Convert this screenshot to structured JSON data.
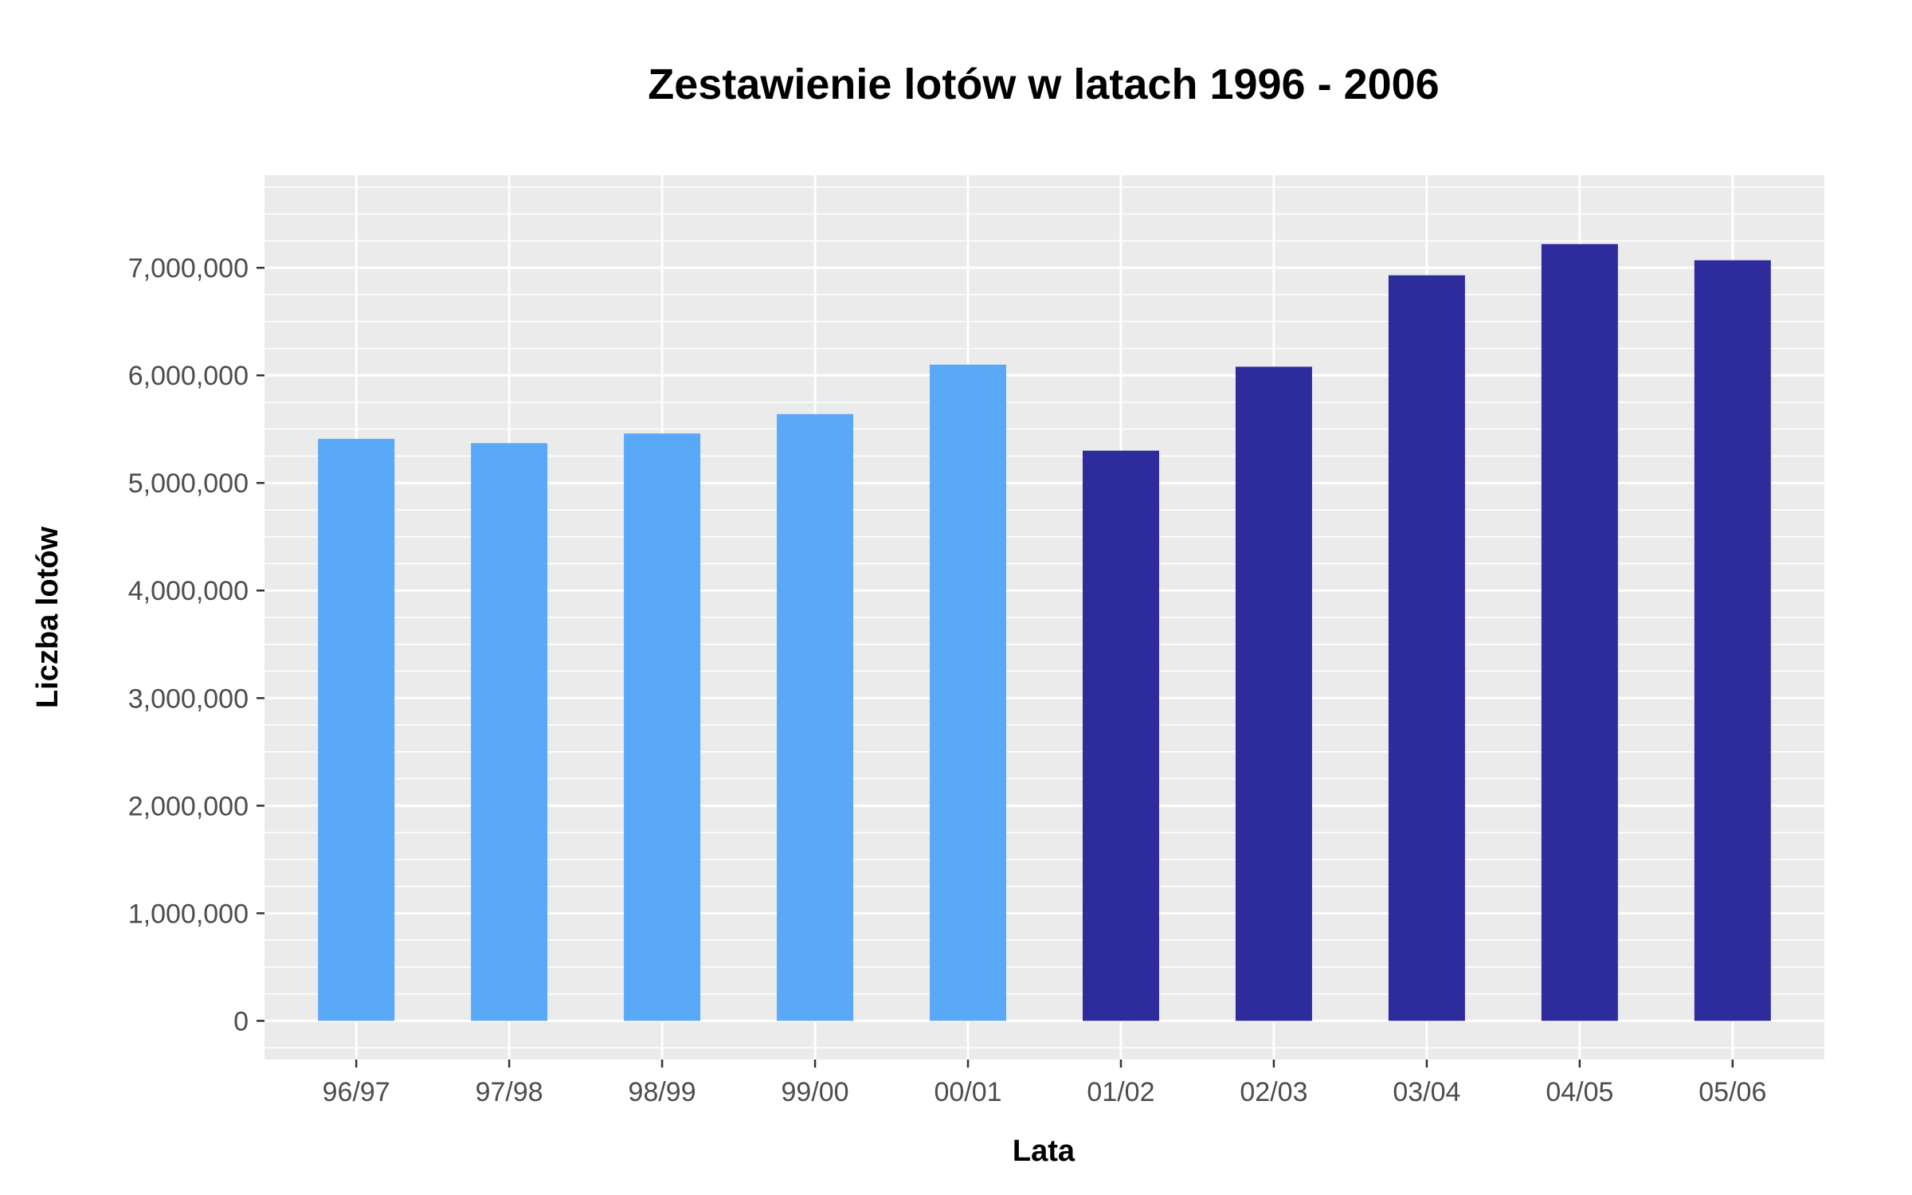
{
  "chart_data": {
    "type": "bar",
    "title": "Zestawienie lotów w latach 1996 - 2006",
    "xlabel": "Lata",
    "ylabel": "Liczba lotów",
    "categories": [
      "96/97",
      "97/98",
      "98/99",
      "99/00",
      "00/01",
      "01/02",
      "02/03",
      "03/04",
      "04/05",
      "05/06"
    ],
    "values": [
      5410000,
      5370000,
      5460000,
      5640000,
      6100000,
      5300000,
      6080000,
      6930000,
      7220000,
      7070000
    ],
    "bar_colors": [
      "#5aa9f8",
      "#5aa9f8",
      "#5aa9f8",
      "#5aa9f8",
      "#5aa9f8",
      "#2e2b9c",
      "#2e2b9c",
      "#2e2b9c",
      "#2e2b9c",
      "#2e2b9c"
    ],
    "ylim": [
      -360000,
      7860000
    ],
    "yticks": [
      0,
      1000000,
      2000000,
      3000000,
      4000000,
      5000000,
      6000000,
      7000000
    ],
    "ytick_labels": [
      "0",
      "1,000,000",
      "2,000,000",
      "3,000,000",
      "4,000,000",
      "5,000,000",
      "6,000,000",
      "7,000,000"
    ],
    "minor_step": 250000,
    "grid": true,
    "legend": "none",
    "panel_color": "#ebebeb",
    "grid_color": "#ffffff"
  }
}
